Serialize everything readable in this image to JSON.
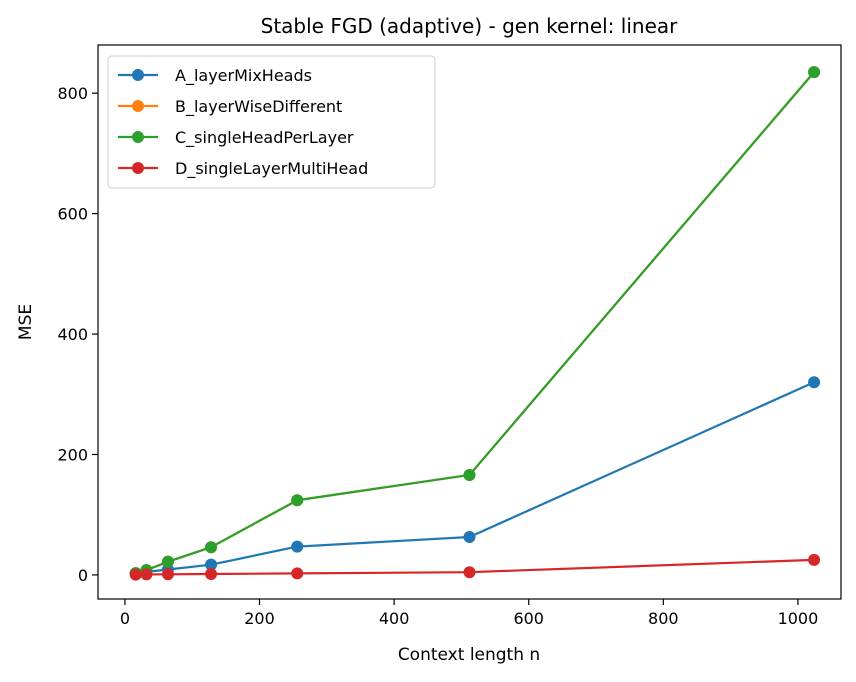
{
  "chart_data": {
    "type": "line",
    "title": "Stable FGD (adaptive) - gen kernel: linear",
    "xlabel": "Context length n",
    "ylabel": "MSE",
    "xlim": [
      -40,
      1064
    ],
    "ylim": [
      -40,
      880
    ],
    "xticks": [
      0,
      200,
      400,
      600,
      800,
      1000
    ],
    "yticks": [
      0,
      200,
      400,
      600,
      800
    ],
    "grid": false,
    "legend_position": "upper left",
    "x": [
      16,
      32,
      64,
      128,
      256,
      512,
      1024
    ],
    "series": [
      {
        "name": "A_layerMixHeads",
        "color": "#1f77b4",
        "values": [
          2,
          5,
          9,
          17,
          47,
          63,
          320
        ]
      },
      {
        "name": "B_layerWiseDifferent",
        "color": "#ff7f0e",
        "values": [
          3,
          8,
          22,
          46,
          124,
          166,
          835
        ]
      },
      {
        "name": "C_singleHeadPerLayer",
        "color": "#2ca02c",
        "values": [
          3,
          8,
          22,
          46,
          124,
          166,
          835
        ]
      },
      {
        "name": "D_singleLayerMultiHead",
        "color": "#d62728",
        "values": [
          0.5,
          0.8,
          1,
          1.5,
          2.5,
          4.5,
          25
        ]
      }
    ]
  }
}
